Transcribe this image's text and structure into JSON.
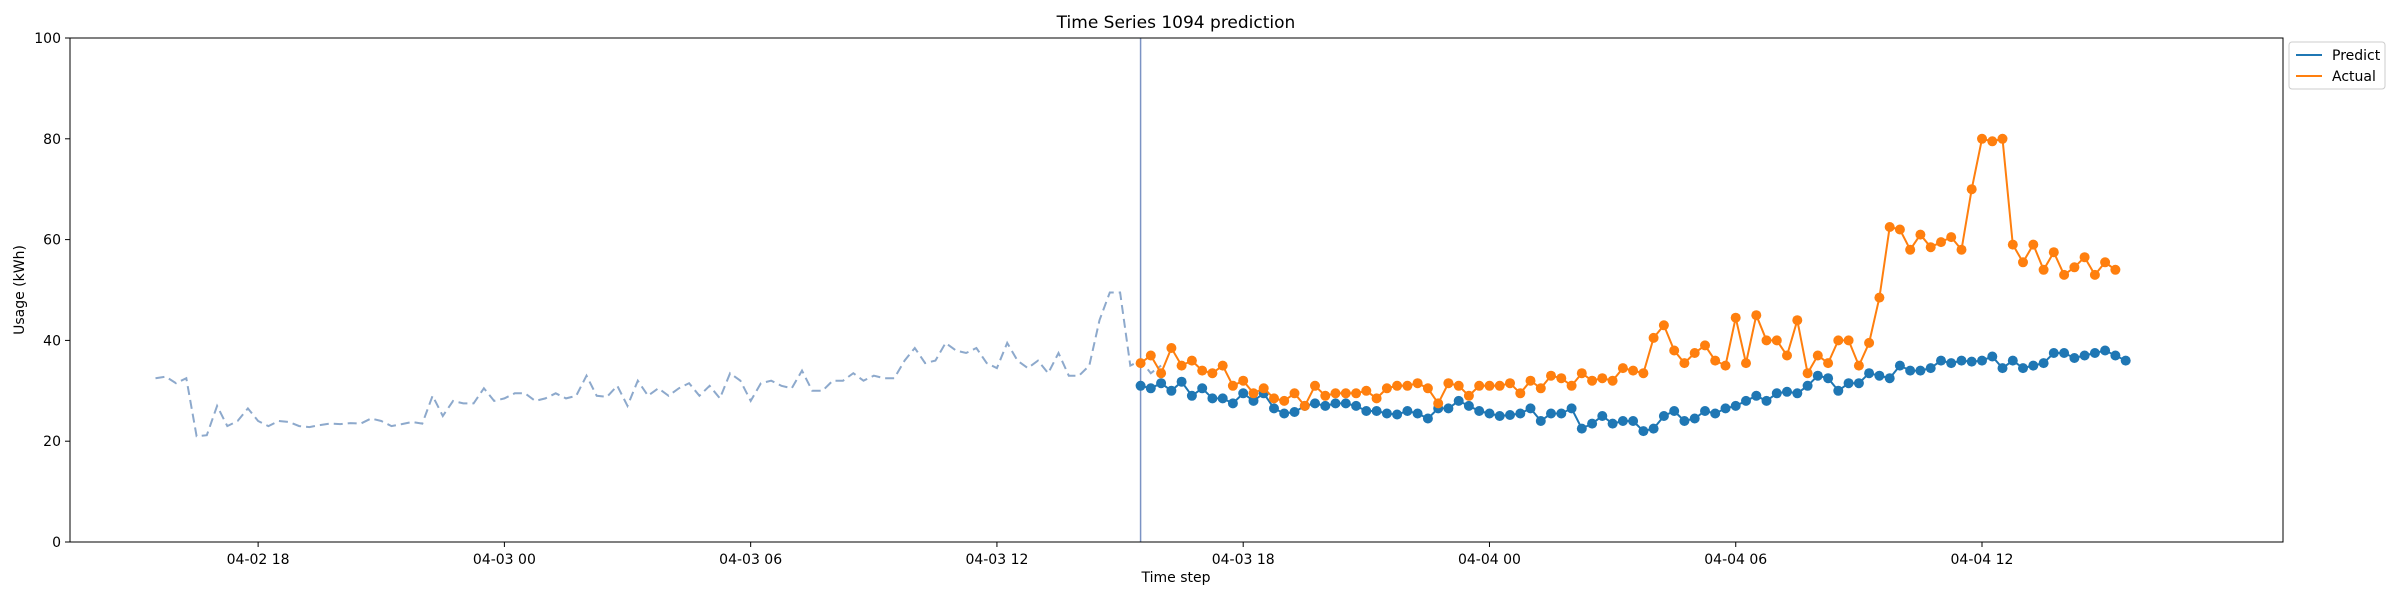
{
  "chart_data": {
    "type": "line",
    "title": "Time Series 1094 prediction",
    "xlabel": "Time step",
    "ylabel": "Usage (kWh)",
    "ylim": [
      0,
      100
    ],
    "yticks": [
      0,
      20,
      40,
      60,
      80,
      100
    ],
    "xlim": [
      "2026-04-02T13:25",
      "2026-04-04T19:20"
    ],
    "xticks": [
      {
        "t": "2026-04-02T18:00",
        "label": "04-02 18"
      },
      {
        "t": "2026-04-03T00:00",
        "label": "04-03 00"
      },
      {
        "t": "2026-04-03T06:00",
        "label": "04-03 06"
      },
      {
        "t": "2026-04-03T12:00",
        "label": "04-03 12"
      },
      {
        "t": "2026-04-03T18:00",
        "label": "04-03 18"
      },
      {
        "t": "2026-04-04T00:00",
        "label": "04-04 00"
      },
      {
        "t": "2026-04-04T06:00",
        "label": "04-04 06"
      },
      {
        "t": "2026-04-04T12:00",
        "label": "04-04 12"
      }
    ],
    "legend_position": "outside-top-right",
    "vertical_marker": "2026-04-03T15:30",
    "colors": {
      "history": "#8da9cc",
      "predict": "#1f77b4",
      "actual": "#ff7f0e",
      "marker": "#7b93c4"
    },
    "history": {
      "start": "2026-04-02T15:30",
      "step_minutes": 15,
      "values": [
        32.5,
        32.8,
        31.5,
        32.5,
        21.0,
        21.2,
        27.0,
        23.0,
        24.0,
        26.5,
        24.0,
        23.0,
        24.0,
        23.8,
        23.0,
        22.8,
        23.2,
        23.5,
        23.4,
        23.6,
        23.5,
        24.5,
        24.0,
        23.0,
        23.4,
        23.8,
        23.5,
        29.0,
        25.0,
        28.0,
        27.5,
        27.5,
        30.5,
        28.0,
        28.5,
        29.5,
        29.5,
        28.0,
        28.5,
        29.5,
        28.5,
        29.0,
        33.0,
        29.0,
        28.8,
        31.0,
        27.0,
        32.0,
        29.0,
        30.5,
        29.0,
        30.5,
        31.5,
        29.0,
        31.0,
        28.5,
        33.5,
        32.0,
        28.0,
        31.5,
        32.0,
        31.0,
        30.5,
        34.0,
        30.0,
        30.0,
        32.0,
        32.0,
        33.5,
        32.0,
        33.0,
        32.5,
        32.5,
        36.0,
        38.5,
        35.5,
        36.0,
        39.5,
        38.0,
        37.5,
        38.5,
        35.5,
        34.5,
        39.5,
        36.0,
        34.5,
        36.0,
        33.5,
        37.5,
        33.0,
        33.0,
        35.0,
        44.0,
        49.5,
        49.5,
        35.0,
        36.0,
        33.5,
        35.0
      ]
    },
    "series": [
      {
        "name": "Predict",
        "start": "2026-04-03T15:30",
        "step_minutes": 15,
        "values": [
          31.0,
          30.5,
          31.5,
          30.0,
          31.8,
          29.0,
          30.5,
          28.5,
          28.5,
          27.5,
          29.5,
          28.0,
          29.5,
          26.5,
          25.5,
          25.8,
          27.0,
          27.5,
          27.0,
          27.5,
          27.5,
          27.0,
          26.0,
          26.0,
          25.5,
          25.3,
          26.0,
          25.5,
          24.5,
          26.5,
          26.5,
          28.0,
          27.0,
          26.0,
          25.5,
          25.0,
          25.2,
          25.5,
          26.5,
          24.0,
          25.5,
          25.5,
          26.5,
          22.5,
          23.5,
          25.0,
          23.5,
          24.0,
          24.0,
          22.0,
          22.5,
          25.0,
          26.0,
          24.0,
          24.5,
          26.0,
          25.5,
          26.5,
          27.0,
          28.0,
          29.0,
          28.0,
          29.5,
          29.8,
          29.5,
          31.0,
          33.0,
          32.5,
          30.0,
          31.5,
          31.5,
          33.5,
          33.0,
          32.5,
          35.0,
          34.0,
          34.0,
          34.5,
          36.0,
          35.5,
          36.0,
          35.8,
          36.0,
          36.8,
          34.5,
          36.0,
          34.5,
          35.0,
          35.5,
          37.5,
          37.5,
          36.5,
          37.0,
          37.5,
          38.0,
          37.0,
          36.0
        ]
      },
      {
        "name": "Actual",
        "start": "2026-04-03T15:30",
        "step_minutes": 15,
        "values": [
          35.5,
          37.0,
          33.5,
          38.5,
          35.0,
          36.0,
          34.0,
          33.5,
          35.0,
          31.0,
          32.0,
          29.5,
          30.5,
          28.5,
          28.0,
          29.5,
          27.0,
          31.0,
          29.0,
          29.5,
          29.5,
          29.5,
          30.0,
          28.5,
          30.5,
          31.0,
          31.0,
          31.5,
          30.5,
          27.5,
          31.5,
          31.0,
          29.0,
          31.0,
          31.0,
          31.0,
          31.5,
          29.5,
          32.0,
          30.5,
          33.0,
          32.5,
          31.0,
          33.5,
          32.0,
          32.5,
          32.0,
          34.5,
          34.0,
          33.5,
          40.5,
          43.0,
          38.0,
          35.5,
          37.5,
          39.0,
          36.0,
          35.0,
          44.5,
          35.5,
          45.0,
          40.0,
          40.0,
          37.0,
          44.0,
          33.5,
          37.0,
          35.5,
          40.0,
          40.0,
          35.0,
          39.5,
          48.5,
          62.5,
          62.0,
          58.0,
          61.0,
          58.5,
          59.5,
          60.5,
          58.0,
          70.0,
          80.0,
          79.5,
          80.0,
          59.0,
          55.5,
          59.0,
          54.0,
          57.5,
          53.0,
          54.5,
          56.5,
          53.0,
          55.5,
          54.0
        ]
      }
    ]
  }
}
